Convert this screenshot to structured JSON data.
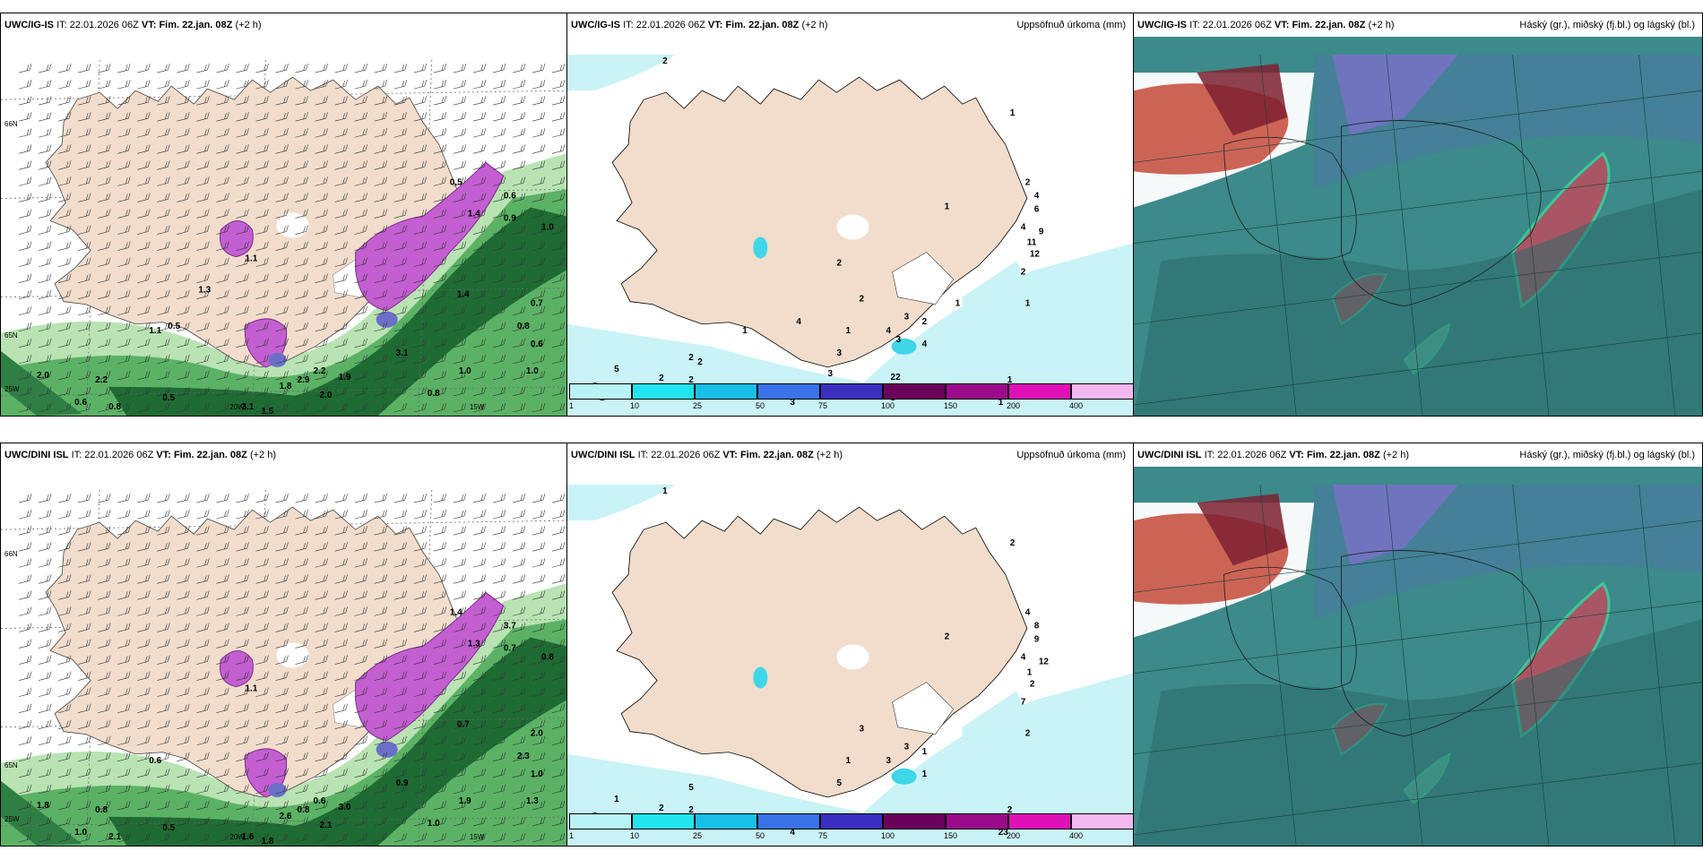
{
  "panels": [
    {
      "id": "ig-wind",
      "model": "UWC/IG-IS",
      "it_label": "IT:",
      "it_value": "22.01.2026 06Z",
      "vt_label": "VT:",
      "vt_value": "Fim. 22.jan. 08Z",
      "offset": "(+2 h)",
      "right_title": "",
      "numbers": [
        "1.1",
        "0.5",
        "0.6",
        "0.9",
        "1.0",
        "1.4",
        "0.7",
        "0.8",
        "0.6",
        "1.0",
        "3.1",
        "2.9",
        "2.2",
        "1.9",
        "1.8",
        "2.0",
        "1.5",
        "3.1",
        "0.6",
        "0.5",
        "0.8",
        "2.0",
        "2.2",
        "1.1",
        "1.4",
        "0.8",
        "1.0",
        "0.5",
        "1.3"
      ],
      "axis": [
        "66N",
        "65N",
        "64N",
        "25W",
        "20W",
        "15W"
      ]
    },
    {
      "id": "ig-precip",
      "model": "UWC/IG-IS",
      "it_label": "IT:",
      "it_value": "22.01.2026 06Z",
      "vt_label": "VT:",
      "vt_value": "Fim. 22.jan. 08Z",
      "offset": "(+2 h)",
      "right_title": "Uppsöfnuð úrkoma (mm)",
      "numbers": [
        "2",
        "1",
        "2",
        "4",
        "6",
        "4",
        "9",
        "11",
        "12",
        "2",
        "1",
        "3",
        "2",
        "4",
        "2",
        "4",
        "3",
        "1",
        "3",
        "3",
        "1",
        "1",
        "1",
        "1",
        "2",
        "2",
        "2",
        "5",
        "3",
        "2",
        "2",
        "3",
        "3",
        "3",
        "1",
        "22",
        "4",
        "1",
        "2"
      ]
    },
    {
      "id": "ig-cloud",
      "model": "UWC/IG-IS",
      "it_label": "IT:",
      "it_value": "22.01.2026 06Z",
      "vt_label": "VT:",
      "vt_value": "Fim. 22.jan. 08Z",
      "offset": "(+2 h)",
      "right_title": "Háský (gr.), miðský (fj.bl.) og lágský (bl.)"
    },
    {
      "id": "dini-wind",
      "model": "UWC/DINI ISL",
      "it_label": "IT:",
      "it_value": "22.01.2026 06Z",
      "vt_label": "VT:",
      "vt_value": "Fim. 22.jan. 08Z",
      "offset": "(+2 h)",
      "right_title": "",
      "numbers": [
        "1.1",
        "1.4",
        "3.7",
        "0.7",
        "0.8",
        "1.3",
        "2.0",
        "2.3",
        "1.0",
        "1.3",
        "0.9",
        "0.8",
        "0.6",
        "3.0",
        "2.6",
        "2.1",
        "1.8",
        "1.6",
        "1.0",
        "0.5",
        "2.1",
        "1.8",
        "0.8",
        "0.6",
        "0.7",
        "1.0",
        "1.9"
      ],
      "axis": [
        "66N",
        "65N",
        "64N",
        "25W",
        "20W",
        "15W"
      ]
    },
    {
      "id": "dini-precip",
      "model": "UWC/DINI ISL",
      "it_label": "IT:",
      "it_value": "22.01.2026 06Z",
      "vt_label": "VT:",
      "vt_value": "Fim. 22.jan. 08Z",
      "offset": "(+2 h)",
      "right_title": "Uppsöfnuð úrkoma (mm)",
      "numbers": [
        "1",
        "2",
        "4",
        "8",
        "9",
        "4",
        "12",
        "1",
        "2",
        "7",
        "2",
        "3",
        "3",
        "3",
        "1",
        "1",
        "5",
        "1",
        "4",
        "3",
        "2",
        "2",
        "4",
        "23",
        "5",
        "2",
        "2",
        "1",
        "2"
      ]
    },
    {
      "id": "dini-cloud",
      "model": "UWC/DINI ISL",
      "it_label": "IT:",
      "it_value": "22.01.2026 06Z",
      "vt_label": "VT:",
      "vt_value": "Fim. 22.jan. 08Z",
      "offset": "(+2 h)",
      "right_title": "Háský (gr.), miðský (fj.bl.) og lágský (bl.)"
    }
  ],
  "colorbar": {
    "ticks": [
      "1",
      "10",
      "25",
      "50",
      "75",
      "100",
      "150",
      "200",
      "400"
    ],
    "colors": [
      "#b8f4f6",
      "#22e4ee",
      "#18bfe8",
      "#3a72e8",
      "#3a2fc0",
      "#6a005a",
      "#9b0a8a",
      "#e010b8",
      "#f4b8f0"
    ]
  }
}
